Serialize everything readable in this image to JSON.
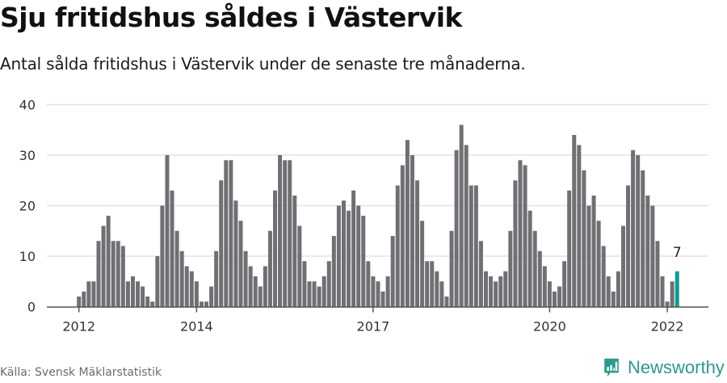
{
  "header": {
    "title": "Sju fritidshus såldes i Västervik",
    "subtitle": "Antal sålda fritidshus i Västervik under de senaste tre månaderna."
  },
  "footer": {
    "source": "Källa: Svensk Mäklarstatistik",
    "brand": "Newsworthy",
    "brand_icon": "bar-chart-speech-bubble-icon"
  },
  "colors": {
    "bar": "#706f74",
    "highlight": "#0e9d91",
    "grid": "#e3e3e3",
    "axis": "#555555",
    "brand": "#2a9a8c"
  },
  "chart_data": {
    "type": "bar",
    "title": "Sju fritidshus såldes i Västervik",
    "subtitle": "Antal sålda fritidshus i Västervik under de senaste tre månaderna.",
    "xlabel": "",
    "ylabel": "",
    "ylim": [
      0,
      40
    ],
    "yticks": [
      0,
      10,
      20,
      30,
      40
    ],
    "xticks": [
      "2012",
      "2014",
      "2017",
      "2020",
      "2022"
    ],
    "grid": true,
    "legend": "none",
    "start": "2012-01",
    "frequency": "monthly",
    "highlight_last": true,
    "annotation": {
      "label": "7",
      "target": "2022-03"
    },
    "series": [
      {
        "name": "Antal sålda fritidshus",
        "values": [
          2,
          3,
          5,
          5,
          13,
          16,
          18,
          13,
          13,
          12,
          5,
          6,
          5,
          4,
          2,
          1,
          10,
          20,
          30,
          23,
          15,
          11,
          8,
          7,
          5,
          1,
          1,
          4,
          11,
          25,
          29,
          29,
          21,
          17,
          11,
          8,
          6,
          4,
          8,
          15,
          23,
          30,
          29,
          29,
          22,
          16,
          9,
          5,
          5,
          4,
          6,
          9,
          14,
          20,
          21,
          19,
          23,
          20,
          18,
          9,
          6,
          5,
          3,
          6,
          14,
          24,
          28,
          33,
          30,
          25,
          17,
          9,
          9,
          7,
          5,
          2,
          15,
          31,
          36,
          32,
          24,
          24,
          13,
          7,
          6,
          5,
          6,
          7,
          15,
          25,
          29,
          28,
          19,
          15,
          11,
          8,
          5,
          3,
          4,
          9,
          23,
          34,
          32,
          27,
          20,
          22,
          17,
          12,
          6,
          3,
          7,
          16,
          24,
          31,
          30,
          27,
          22,
          20,
          13,
          6,
          1,
          5,
          7
        ]
      }
    ]
  }
}
